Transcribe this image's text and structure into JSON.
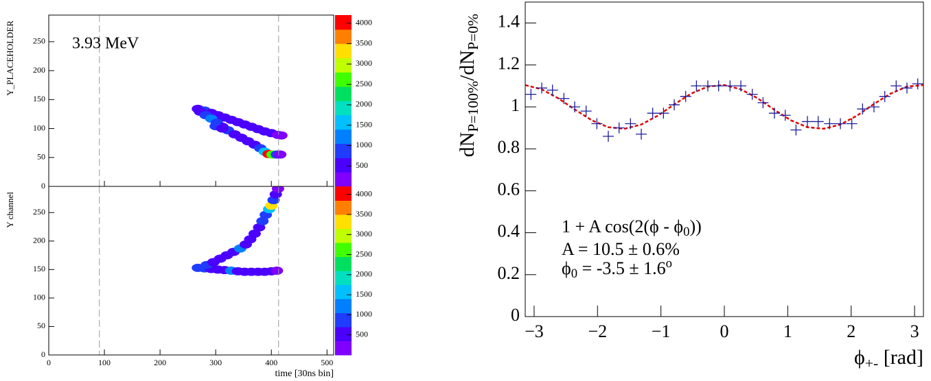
{
  "chart_data": [
    {
      "type": "heatmap",
      "ylabel": "Y_PLACEHOLDER",
      "annotation": "3.93 MeV",
      "xlim": [
        0,
        512
      ],
      "xticks": [
        0,
        100,
        200,
        300,
        400,
        500
      ],
      "ylim": [
        0,
        296
      ],
      "yticks": [
        0,
        50,
        100,
        150,
        200,
        250
      ],
      "zlim": [
        0,
        4200
      ],
      "zticks": [
        500,
        1000,
        1500,
        2000,
        2500,
        3000,
        3500,
        4000
      ],
      "vlines": [
        91,
        413
      ],
      "palette": [
        "#7f00ff",
        "#4b00ff",
        "#1f3cff",
        "#0080ff",
        "#00c0ff",
        "#00e0c0",
        "#00e060",
        "#40ff00",
        "#c0ff00",
        "#ffe000",
        "#ff8000",
        "#ff0000"
      ],
      "x": [
        268,
        280,
        292,
        304,
        316,
        328,
        340,
        352,
        364,
        376,
        388,
        400,
        412,
        418,
        272,
        282,
        292,
        302,
        312,
        322,
        334,
        346,
        358,
        370,
        380,
        388,
        395,
        402,
        410,
        416,
        300,
        312
      ],
      "y": [
        134,
        131,
        127,
        123,
        119,
        115,
        111,
        107,
        103,
        99,
        95,
        92,
        89,
        88,
        129,
        123,
        117,
        110,
        103,
        97,
        90,
        84,
        78,
        72,
        66,
        60,
        56,
        55,
        55,
        55,
        104,
        100
      ],
      "values": [
        500,
        700,
        600,
        500,
        400,
        450,
        500,
        400,
        350,
        400,
        450,
        500,
        300,
        200,
        600,
        800,
        1200,
        900,
        600,
        700,
        500,
        500,
        450,
        600,
        900,
        1500,
        3900,
        2500,
        800,
        300,
        1000,
        600
      ]
    },
    {
      "type": "heatmap",
      "ylabel": "Y channel",
      "xlabel": "time [30ns bin]",
      "xlim": [
        0,
        512
      ],
      "xticks": [
        0,
        100,
        200,
        300,
        400,
        500
      ],
      "ylim": [
        0,
        296
      ],
      "yticks": [
        0,
        50,
        100,
        150,
        200,
        250
      ],
      "zlim": [
        0,
        4200
      ],
      "zticks": [
        500,
        1000,
        1500,
        2000,
        2500,
        3000,
        3500,
        4000
      ],
      "vlines": [
        91,
        413
      ],
      "palette": [
        "#7f00ff",
        "#4b00ff",
        "#1f3cff",
        "#0080ff",
        "#00c0ff",
        "#00e0c0",
        "#00e060",
        "#40ff00",
        "#c0ff00",
        "#ffe000",
        "#ff8000",
        "#ff0000"
      ],
      "x": [
        268,
        280,
        292,
        304,
        316,
        328,
        340,
        352,
        364,
        376,
        388,
        400,
        410,
        284,
        296,
        308,
        320,
        332,
        344,
        354,
        362,
        370,
        378,
        384,
        390,
        396,
        400,
        404,
        408,
        412
      ],
      "y": [
        153,
        152,
        151,
        150,
        149,
        148,
        147,
        146,
        146,
        146,
        146,
        147,
        148,
        158,
        163,
        169,
        175,
        181,
        187,
        194,
        203,
        213,
        224,
        235,
        246,
        256,
        262,
        272,
        282,
        292
      ],
      "values": [
        700,
        900,
        600,
        500,
        500,
        1200,
        500,
        450,
        500,
        600,
        400,
        500,
        300,
        800,
        600,
        500,
        600,
        500,
        1300,
        500,
        400,
        500,
        600,
        700,
        800,
        1500,
        3200,
        900,
        500,
        300
      ]
    },
    {
      "type": "scatter",
      "ylabel": [
        "dN",
        {
          "sub": "P=100%"
        },
        "/dN",
        {
          "sub": "P=0%"
        }
      ],
      "xlabel": [
        "ϕ",
        {
          "sub": "+-"
        },
        " [rad]"
      ],
      "annotations": [
        [
          "1 + A cos(2(ϕ - ϕ",
          {
            "sub": "0"
          },
          "))"
        ],
        [
          "A = 10.5 ± 0.6%"
        ],
        [
          "ϕ",
          {
            "sub": "0"
          },
          " = -3.5 ± 1.6",
          {
            "sup": "o"
          }
        ]
      ],
      "xlim": [
        -3.14,
        3.14
      ],
      "xticks": [
        {
          "value": -3,
          "label": "−3"
        },
        {
          "value": -2,
          "label": "−2"
        },
        {
          "value": -1,
          "label": "−1"
        },
        0,
        1,
        2,
        3
      ],
      "ylim": [
        0,
        1.5
      ],
      "yticks": [
        0,
        0.2,
        0.4,
        0.6,
        0.8,
        1,
        1.2,
        1.4
      ],
      "color": "#1c1c9c",
      "x": [
        -3.05,
        -2.88,
        -2.71,
        -2.53,
        -2.36,
        -2.18,
        -2.01,
        -1.83,
        -1.66,
        -1.48,
        -1.31,
        -1.13,
        -0.96,
        -0.79,
        -0.61,
        -0.44,
        -0.26,
        -0.09,
        0.09,
        0.26,
        0.44,
        0.61,
        0.79,
        0.96,
        1.13,
        1.31,
        1.48,
        1.66,
        1.83,
        2.01,
        2.18,
        2.36,
        2.53,
        2.71,
        2.88,
        3.05
      ],
      "values": [
        1.06,
        1.09,
        1.08,
        1.04,
        1.0,
        0.98,
        0.92,
        0.86,
        0.9,
        0.92,
        0.87,
        0.97,
        0.97,
        1.01,
        1.05,
        1.1,
        1.1,
        1.1,
        1.1,
        1.1,
        1.06,
        1.02,
        0.97,
        0.96,
        0.89,
        0.93,
        0.93,
        0.92,
        0.92,
        0.92,
        0.99,
        1.0,
        1.05,
        1.1,
        1.09,
        1.11
      ],
      "fit": {
        "color": "#e00000",
        "x": [
          -3.14,
          -2.88,
          -2.62,
          -2.36,
          -2.09,
          -1.83,
          -1.57,
          -1.31,
          -1.05,
          -0.79,
          -0.52,
          -0.26,
          0,
          0.26,
          0.52,
          0.79,
          1.05,
          1.31,
          1.57,
          1.83,
          2.09,
          2.36,
          2.62,
          2.88,
          3.14
        ],
        "y": [
          1.104,
          1.084,
          1.041,
          0.988,
          0.936,
          0.903,
          0.896,
          0.916,
          0.958,
          1.012,
          1.064,
          1.097,
          1.104,
          1.084,
          1.042,
          0.986,
          0.936,
          0.903,
          0.896,
          0.916,
          0.958,
          1.014,
          1.063,
          1.097,
          1.104
        ]
      }
    }
  ]
}
